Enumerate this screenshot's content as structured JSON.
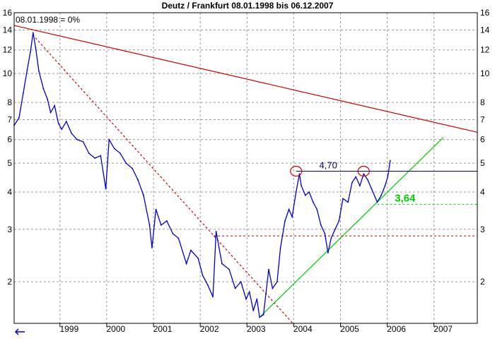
{
  "chart_data": {
    "type": "line",
    "title": "Deutz / Frankfurt 08.01.1998 bis 06.12.2007",
    "subtitle_note": "08.01.1998 = 0%",
    "y_scale": "log",
    "ylim": [
      1.45,
      16
    ],
    "xlim": [
      "1998-01-08",
      "2007-12-06"
    ],
    "y_ticks": [
      2,
      3,
      4,
      5,
      6,
      7,
      8,
      10,
      12,
      14,
      16
    ],
    "x_ticks": [
      "1999",
      "2000",
      "2001",
      "2002",
      "2003",
      "2004",
      "2005",
      "2006",
      "2007"
    ],
    "grid": true,
    "series": [
      {
        "color": "#0000cc",
        "points": [
          [
            "1998-01-08",
            6.7
          ],
          [
            "1998-02-15",
            7.1
          ],
          [
            "1998-03-20",
            8.6
          ],
          [
            "1998-04-20",
            10.3
          ],
          [
            "1998-05-15",
            11.8
          ],
          [
            "1998-06-05",
            13.7
          ],
          [
            "1998-06-25",
            12.2
          ],
          [
            "1998-07-20",
            10.2
          ],
          [
            "1998-08-25",
            8.9
          ],
          [
            "1998-09-25",
            8.2
          ],
          [
            "1998-10-20",
            7.4
          ],
          [
            "1998-11-20",
            7.8
          ],
          [
            "1998-12-20",
            6.8
          ],
          [
            "1999-01-15",
            6.5
          ],
          [
            "1999-02-20",
            6.9
          ],
          [
            "1999-04-01",
            6.3
          ],
          [
            "1999-05-15",
            6.0
          ],
          [
            "1999-07-01",
            5.9
          ],
          [
            "1999-08-15",
            5.4
          ],
          [
            "1999-10-01",
            5.2
          ],
          [
            "1999-11-15",
            5.3
          ],
          [
            "1999-12-25",
            4.1
          ],
          [
            "2000-01-20",
            6.0
          ],
          [
            "2000-03-01",
            5.6
          ],
          [
            "2000-04-15",
            5.4
          ],
          [
            "2000-06-01",
            5.0
          ],
          [
            "2000-07-20",
            4.8
          ],
          [
            "2000-09-01",
            4.4
          ],
          [
            "2000-10-15",
            3.9
          ],
          [
            "2000-12-01",
            3.1
          ],
          [
            "2000-12-20",
            2.6
          ],
          [
            "2001-01-20",
            3.5
          ],
          [
            "2001-03-01",
            3.1
          ],
          [
            "2001-04-15",
            3.2
          ],
          [
            "2001-06-01",
            2.9
          ],
          [
            "2001-07-15",
            2.8
          ],
          [
            "2001-09-15",
            2.3
          ],
          [
            "2001-10-20",
            2.55
          ],
          [
            "2001-12-15",
            2.4
          ],
          [
            "2002-01-20",
            2.1
          ],
          [
            "2002-03-01",
            1.95
          ],
          [
            "2002-04-10",
            1.78
          ],
          [
            "2002-05-05",
            2.95
          ],
          [
            "2002-06-20",
            2.3
          ],
          [
            "2002-08-15",
            2.2
          ],
          [
            "2002-10-01",
            1.9
          ],
          [
            "2002-11-15",
            2.0
          ],
          [
            "2002-12-25",
            1.75
          ],
          [
            "2003-01-20",
            1.85
          ],
          [
            "2003-02-20",
            1.6
          ],
          [
            "2003-03-20",
            1.75
          ],
          [
            "2003-04-10",
            1.52
          ],
          [
            "2003-05-10",
            1.55
          ],
          [
            "2003-06-20",
            2.2
          ],
          [
            "2003-07-20",
            1.9
          ],
          [
            "2003-08-25",
            2.0
          ],
          [
            "2003-09-20",
            2.6
          ],
          [
            "2003-10-25",
            3.2
          ],
          [
            "2003-11-25",
            3.5
          ],
          [
            "2003-12-20",
            3.3
          ],
          [
            "2004-01-20",
            4.0
          ],
          [
            "2004-02-15",
            4.6
          ],
          [
            "2004-03-01",
            4.2
          ],
          [
            "2004-04-01",
            3.9
          ],
          [
            "2004-05-01",
            4.0
          ],
          [
            "2004-06-01",
            3.7
          ],
          [
            "2004-07-01",
            3.5
          ],
          [
            "2004-08-01",
            3.1
          ],
          [
            "2004-09-01",
            2.9
          ],
          [
            "2004-09-25",
            2.5
          ],
          [
            "2004-10-20",
            2.8
          ],
          [
            "2004-11-20",
            3.0
          ],
          [
            "2004-12-20",
            3.2
          ],
          [
            "2005-01-20",
            3.8
          ],
          [
            "2005-03-01",
            3.7
          ],
          [
            "2005-04-01",
            4.3
          ],
          [
            "2005-05-01",
            4.5
          ],
          [
            "2005-06-01",
            4.2
          ],
          [
            "2005-07-01",
            4.6
          ],
          [
            "2005-08-01",
            4.4
          ],
          [
            "2005-09-01",
            4.1
          ],
          [
            "2005-10-15",
            3.7
          ],
          [
            "2005-11-15",
            3.9
          ],
          [
            "2005-12-15",
            4.2
          ],
          [
            "2006-01-05",
            4.5
          ],
          [
            "2006-01-25",
            5.1
          ]
        ]
      }
    ],
    "trendlines": [
      {
        "color": "#cc0000",
        "style": "solid",
        "from": [
          "1998-01-08",
          14.5
        ],
        "to": [
          "2007-12-06",
          6.35
        ]
      },
      {
        "color": "#cc0000",
        "style": "dashed",
        "from": [
          "1998-06-01",
          13.5
        ],
        "to": [
          "2003-12-25",
          1.45
        ]
      },
      {
        "color": "#00cc00",
        "style": "solid",
        "from": [
          "2003-04-10",
          1.52
        ],
        "to": [
          "2007-03-15",
          6.1
        ]
      }
    ],
    "levels": [
      {
        "value": 4.7,
        "label": "4,70",
        "color": "#000066",
        "style": "solid",
        "from": "2004-01-20"
      },
      {
        "value": 3.64,
        "label": "3,64",
        "color": "#00cc00",
        "style": "dashed",
        "from": "2005-10-15"
      },
      {
        "value": 2.85,
        "color": "#cc0000",
        "style": "dashed",
        "from": "2002-04-15"
      }
    ],
    "markers": [
      {
        "date": "2004-01-20",
        "value": 4.7,
        "shape": "ellipse",
        "color": "#cc0000"
      },
      {
        "date": "2005-07-01",
        "value": 4.7,
        "shape": "ellipse",
        "color": "#cc0000"
      }
    ]
  }
}
